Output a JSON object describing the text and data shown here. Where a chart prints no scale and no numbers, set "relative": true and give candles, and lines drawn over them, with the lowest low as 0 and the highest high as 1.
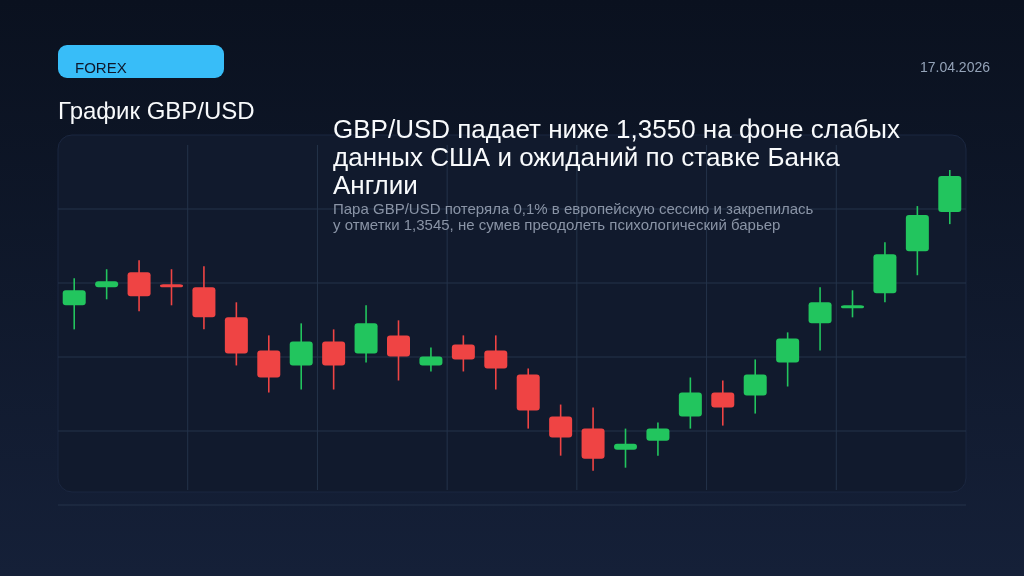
{
  "chart_data": {
    "type": "candlestick",
    "title": "График GBP/USD",
    "subtitle": "GBP/USD падает ниже 1,3550 на фоне слабых данных США и ожиданий по ставке Банка Англии",
    "annotations": [
      "FOREX",
      "17.04.2026",
      "Пара GBP/USD потеряла 0,1% в европейскую сессию и закрепилась у отметки 1,3545, не сумев преодолеть психологический барьер"
    ],
    "relative": true,
    "grid": true,
    "categories": [
      null,
      null,
      null,
      null,
      null,
      null,
      null,
      null,
      null,
      null,
      null,
      null,
      null,
      null,
      null,
      null,
      null,
      null,
      null,
      null,
      null,
      null,
      null,
      null,
      null,
      null,
      null,
      null
    ],
    "ohlc": [
      [
        0.55,
        0.64,
        0.47,
        0.6
      ],
      [
        0.61,
        0.67,
        0.57,
        0.63
      ],
      [
        0.66,
        0.7,
        0.53,
        0.58
      ],
      [
        0.62,
        0.67,
        0.55,
        0.61
      ],
      [
        0.61,
        0.68,
        0.47,
        0.51
      ],
      [
        0.51,
        0.56,
        0.35,
        0.39
      ],
      [
        0.4,
        0.45,
        0.26,
        0.31
      ],
      [
        0.35,
        0.49,
        0.27,
        0.43
      ],
      [
        0.43,
        0.47,
        0.27,
        0.35
      ],
      [
        0.39,
        0.55,
        0.36,
        0.49
      ],
      [
        0.45,
        0.5,
        0.3,
        0.38
      ],
      [
        0.35,
        0.41,
        0.33,
        0.38
      ],
      [
        0.42,
        0.45,
        0.33,
        0.37
      ],
      [
        0.4,
        0.45,
        0.27,
        0.34
      ],
      [
        0.32,
        0.34,
        0.14,
        0.2
      ],
      [
        0.18,
        0.22,
        0.05,
        0.11
      ],
      [
        0.14,
        0.21,
        0,
        0.04
      ],
      [
        0.07,
        0.14,
        0.01,
        0.09
      ],
      [
        0.1,
        0.16,
        0.05,
        0.14
      ],
      [
        0.18,
        0.31,
        0.14,
        0.26
      ],
      [
        0.26,
        0.3,
        0.15,
        0.21
      ],
      [
        0.25,
        0.37,
        0.19,
        0.32
      ],
      [
        0.36,
        0.46,
        0.28,
        0.44
      ],
      [
        0.49,
        0.61,
        0.4,
        0.56
      ],
      [
        0.54,
        0.6,
        0.51,
        0.55
      ],
      [
        0.59,
        0.76,
        0.56,
        0.72
      ],
      [
        0.73,
        0.88,
        0.65,
        0.85
      ],
      [
        0.86,
        1,
        0.82,
        0.98
      ]
    ],
    "colors": [
      "#22c55e",
      "#22c55e",
      "#ef4444",
      "#ef4444",
      "#ef4444",
      "#ef4444",
      "#ef4444",
      "#22c55e",
      "#ef4444",
      "#22c55e",
      "#ef4444",
      "#22c55e",
      "#ef4444",
      "#ef4444",
      "#ef4444",
      "#ef4444",
      "#ef4444",
      "#22c55e",
      "#22c55e",
      "#22c55e",
      "#ef4444",
      "#22c55e",
      "#22c55e",
      "#22c55e",
      "#22c55e",
      "#22c55e",
      "#22c55e",
      "#22c55e"
    ]
  }
}
